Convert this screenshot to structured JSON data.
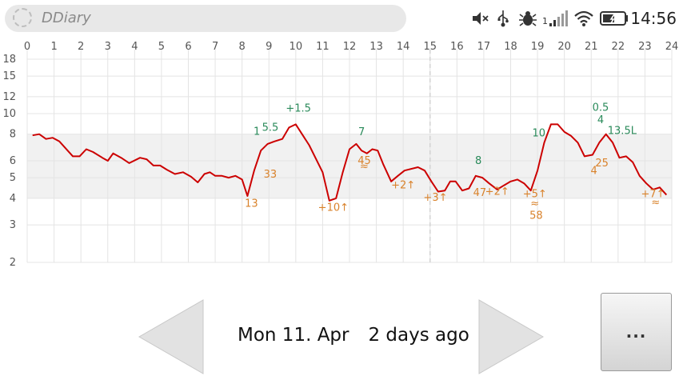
{
  "statusbar": {
    "app_title": "DDiary",
    "clock": "14:56",
    "signal_label": "1",
    "icons": [
      "mute-icon",
      "usb-icon",
      "bug-icon",
      "signal-icon",
      "wifi-icon",
      "battery-icon"
    ]
  },
  "chart_data": {
    "type": "line",
    "x_ticks": [
      "0",
      "1",
      "2",
      "3",
      "4",
      "5",
      "6",
      "7",
      "8",
      "9",
      "10",
      "11",
      "12",
      "13",
      "14",
      "15",
      "16",
      "17",
      "18",
      "19",
      "20",
      "21",
      "22",
      "23",
      "24"
    ],
    "y_ticks": [
      "2",
      "3",
      "4",
      "5",
      "6",
      "8",
      "10",
      "12",
      "15",
      "18"
    ],
    "xlim": [
      0,
      24
    ],
    "ylim": [
      2,
      18
    ],
    "y_scale": "log",
    "target_band": [
      4,
      8
    ],
    "now_marker_x": 15,
    "line_color": "#cc0000",
    "grid": true,
    "series": [
      {
        "x": [
          0.2,
          0.45,
          0.7,
          0.95,
          1.2,
          1.7,
          1.95,
          2.2,
          2.45,
          2.8,
          3.0,
          3.2,
          3.5,
          3.8,
          4.2,
          4.45,
          4.7,
          4.95,
          5.2,
          5.5,
          5.8,
          6.1,
          6.35,
          6.6,
          6.8,
          7.0,
          7.25,
          7.5,
          7.75,
          8.0,
          8.2,
          8.45,
          8.7,
          8.95,
          9.2,
          9.5,
          9.75,
          10.0,
          10.5,
          11.0,
          11.25,
          11.5,
          11.75,
          12.0,
          12.25,
          12.45,
          12.65,
          12.85,
          13.05,
          13.25,
          13.55,
          13.8,
          14.05,
          14.55,
          14.8,
          15.05,
          15.3,
          15.55,
          15.75,
          15.95,
          16.2,
          16.45,
          16.7,
          16.95,
          17.2,
          17.5,
          17.75,
          18.0,
          18.25,
          18.5,
          18.75,
          19.0,
          19.25,
          19.5,
          19.75,
          20.0,
          20.25,
          20.5,
          20.75,
          21.05,
          21.3,
          21.55,
          21.8,
          22.05,
          22.3,
          22.55,
          22.8,
          23.05,
          23.3,
          23.55,
          23.8
        ],
        "y": [
          7.9,
          8.0,
          7.6,
          7.7,
          7.4,
          6.3,
          6.3,
          6.8,
          6.6,
          6.2,
          6.0,
          6.5,
          6.2,
          5.85,
          6.2,
          6.1,
          5.7,
          5.7,
          5.45,
          5.2,
          5.3,
          5.05,
          4.75,
          5.2,
          5.3,
          5.1,
          5.1,
          5.0,
          5.1,
          4.9,
          4.1,
          5.4,
          6.7,
          7.2,
          7.4,
          7.6,
          8.6,
          8.9,
          7.1,
          5.3,
          3.9,
          4.0,
          5.3,
          6.8,
          7.2,
          6.7,
          6.5,
          6.8,
          6.7,
          5.8,
          4.8,
          5.1,
          5.4,
          5.6,
          5.4,
          4.8,
          4.3,
          4.35,
          4.8,
          4.8,
          4.35,
          4.45,
          5.1,
          5.0,
          4.7,
          4.4,
          4.6,
          4.8,
          4.9,
          4.7,
          4.35,
          5.4,
          7.3,
          8.9,
          8.9,
          8.2,
          7.85,
          7.3,
          6.3,
          6.4,
          7.3,
          8.0,
          7.3,
          6.2,
          6.3,
          5.9,
          5.1,
          4.7,
          4.4,
          4.5,
          4.15
        ]
      }
    ],
    "annotations": [
      {
        "x": 8.35,
        "y": 3.65,
        "text": "13",
        "kind": "orange"
      },
      {
        "x": 9.05,
        "y": 5.0,
        "text": "33",
        "kind": "orange"
      },
      {
        "x": 8.55,
        "y": 7.95,
        "text": "1",
        "kind": "green"
      },
      {
        "x": 9.05,
        "y": 8.3,
        "text": "5.5",
        "kind": "green"
      },
      {
        "x": 10.1,
        "y": 10.2,
        "text": "+1.5",
        "kind": "green"
      },
      {
        "x": 11.4,
        "y": 3.5,
        "text": "+10↑",
        "kind": "orange"
      },
      {
        "x": 12.45,
        "y": 7.9,
        "text": "7",
        "kind": "green"
      },
      {
        "x": 12.55,
        "y": 5.8,
        "text": "45",
        "kind": "orange"
      },
      {
        "x": 12.55,
        "y": 5.45,
        "text": "≈",
        "kind": "orange"
      },
      {
        "x": 14.0,
        "y": 4.45,
        "text": "+2↑",
        "kind": "orange"
      },
      {
        "x": 15.2,
        "y": 3.9,
        "text": "+3↑",
        "kind": "orange"
      },
      {
        "x": 16.8,
        "y": 5.8,
        "text": "8",
        "kind": "green"
      },
      {
        "x": 16.85,
        "y": 4.1,
        "text": "47",
        "kind": "orange"
      },
      {
        "x": 17.5,
        "y": 4.15,
        "text": "+2↑",
        "kind": "orange"
      },
      {
        "x": 19.05,
        "y": 7.8,
        "text": "10",
        "kind": "green"
      },
      {
        "x": 18.9,
        "y": 4.05,
        "text": "+5↑",
        "kind": "orange"
      },
      {
        "x": 18.9,
        "y": 3.65,
        "text": "≈",
        "kind": "orange"
      },
      {
        "x": 18.95,
        "y": 3.2,
        "text": "58",
        "kind": "orange"
      },
      {
        "x": 21.35,
        "y": 10.3,
        "text": "0.5",
        "kind": "green"
      },
      {
        "x": 21.35,
        "y": 9.0,
        "text": "4",
        "kind": "green"
      },
      {
        "x": 22.15,
        "y": 8.0,
        "text": "13.5L",
        "kind": "green"
      },
      {
        "x": 21.4,
        "y": 5.65,
        "text": "25",
        "kind": "orange"
      },
      {
        "x": 21.1,
        "y": 5.2,
        "text": "4",
        "kind": "orange"
      },
      {
        "x": 23.3,
        "y": 4.05,
        "text": "+7↑",
        "kind": "orange"
      },
      {
        "x": 23.4,
        "y": 3.7,
        "text": "≈",
        "kind": "orange"
      }
    ],
    "colors": {
      "green": "#2a8a5a",
      "orange": "#d9822b",
      "axis_text": "#555555",
      "band": "#f1f1f1",
      "grid": "#e4e4e4"
    }
  },
  "nav": {
    "date": "Mon 11. Apr",
    "relative": "2 days ago",
    "more_label": "..."
  }
}
